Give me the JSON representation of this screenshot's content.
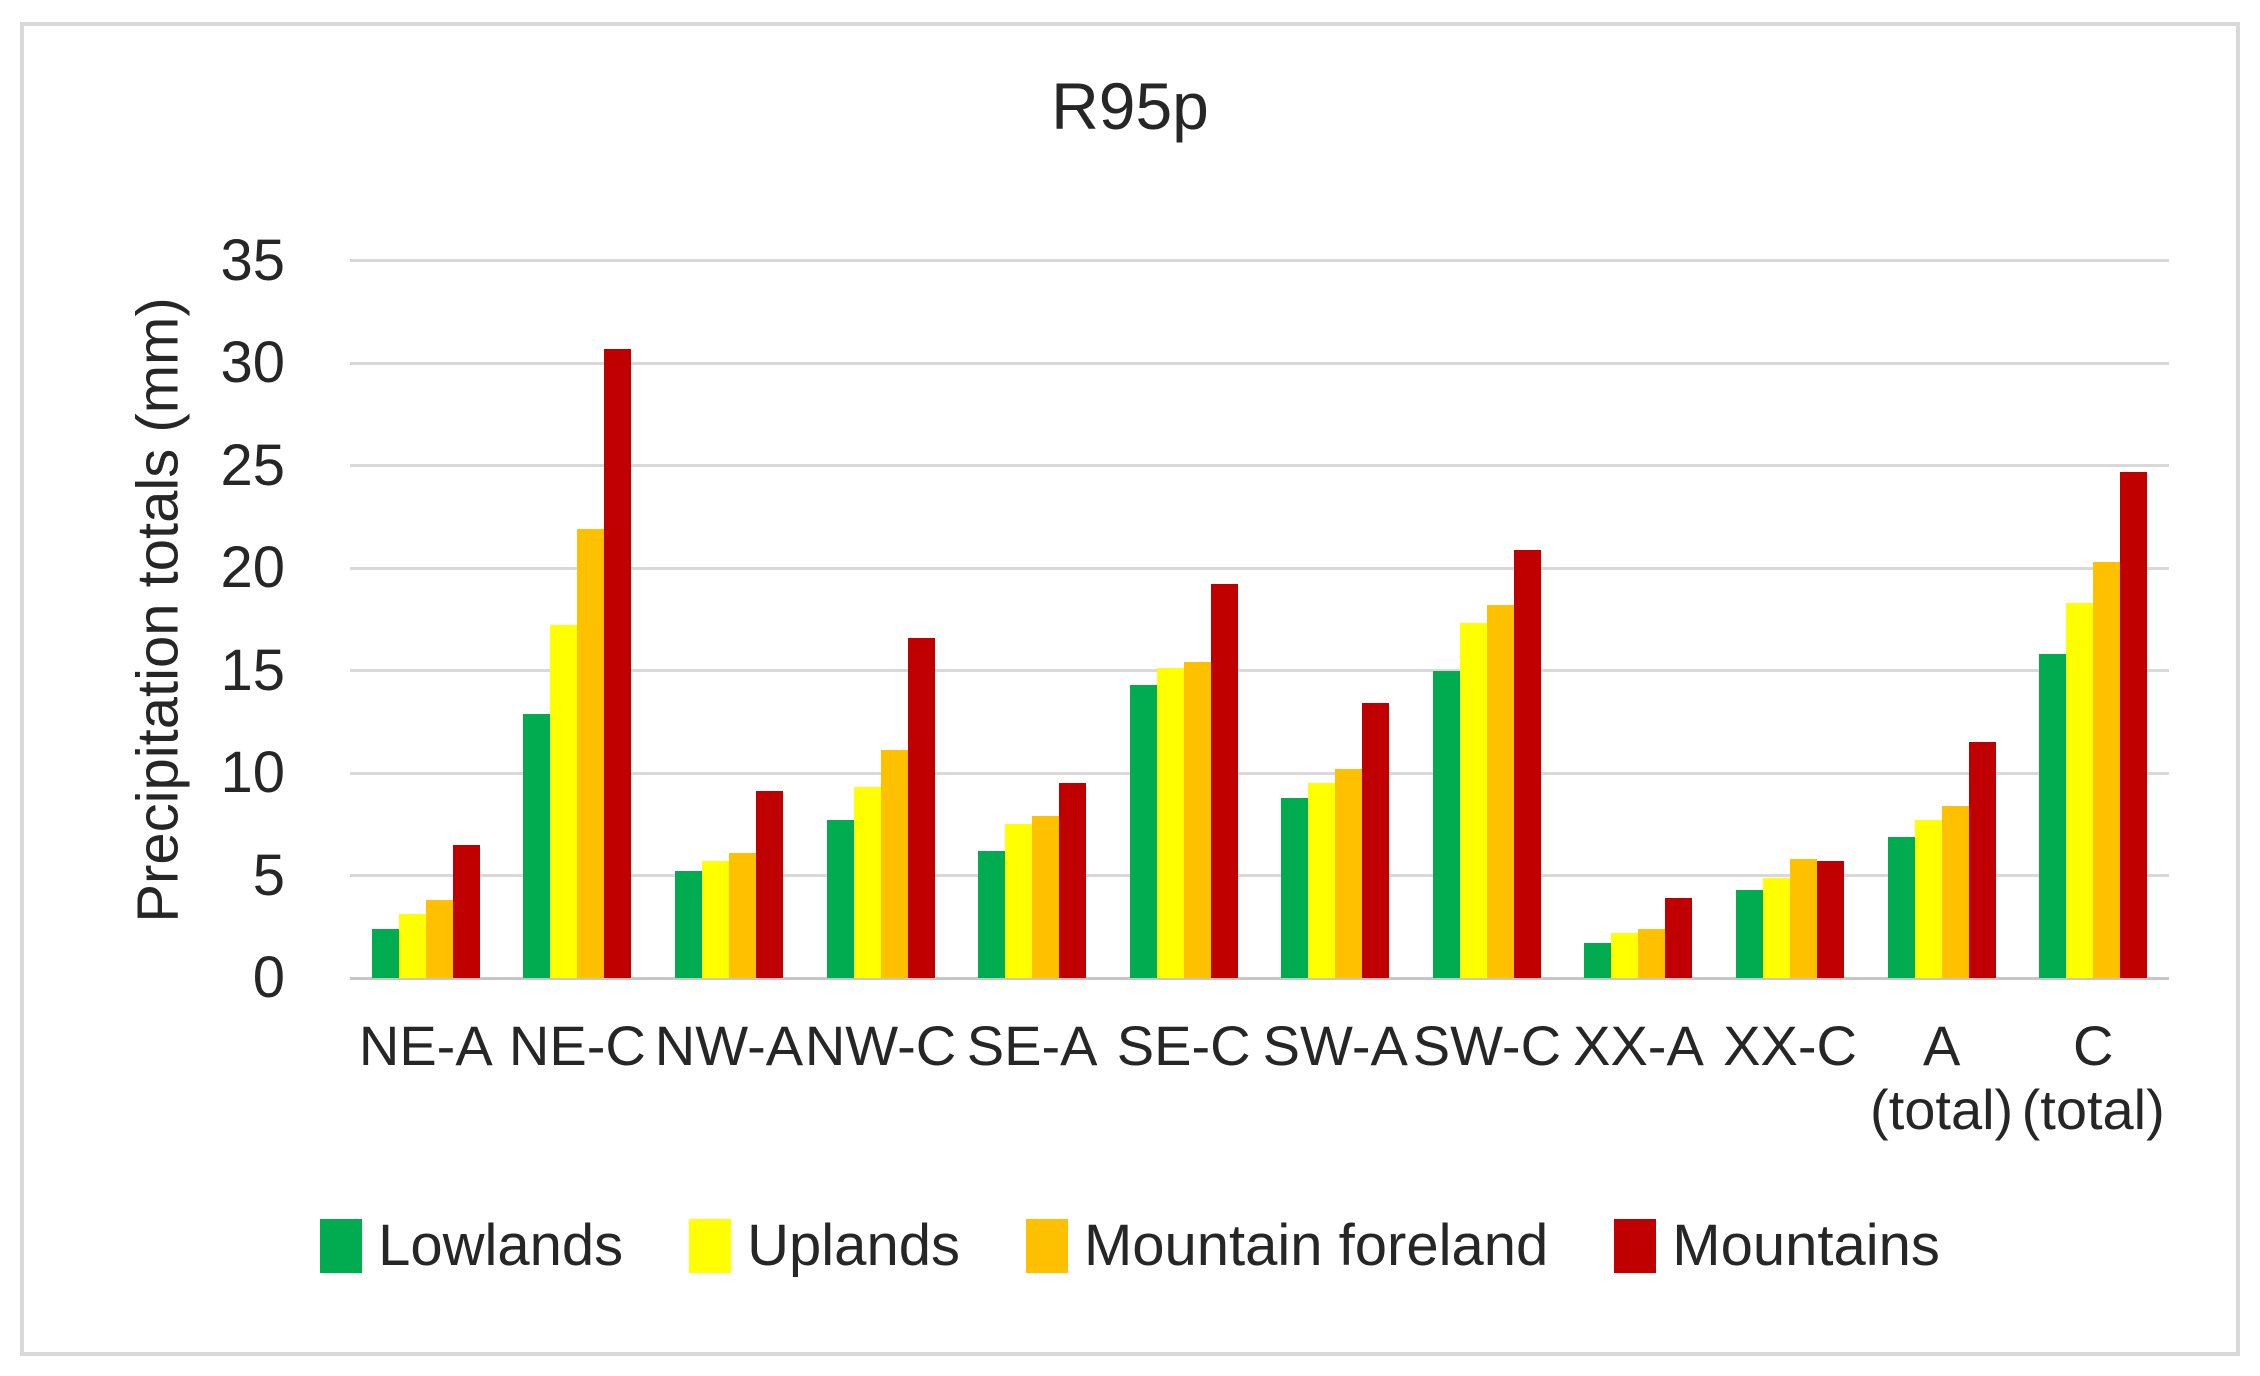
{
  "chart_data": {
    "type": "bar",
    "title": "R95p",
    "ylabel": "Precipitation totals (mm)",
    "ylim": [
      0,
      35
    ],
    "yticks": [
      0,
      5,
      10,
      15,
      20,
      25,
      30,
      35
    ],
    "grid": true,
    "legend_position": "bottom",
    "categories": [
      {
        "label": "NE-A"
      },
      {
        "label": "NE-C"
      },
      {
        "label": "NW-A"
      },
      {
        "label": "NW-C"
      },
      {
        "label": "SE-A"
      },
      {
        "label": "SE-C"
      },
      {
        "label": "SW-A"
      },
      {
        "label": "SW-C"
      },
      {
        "label": "XX-A"
      },
      {
        "label": "XX-C"
      },
      {
        "label": "A",
        "sublabel": "(total)"
      },
      {
        "label": "C",
        "sublabel": "(total)"
      }
    ],
    "series": [
      {
        "name": "Lowlands",
        "color": "#00AC4F",
        "values": [
          2.4,
          12.9,
          5.2,
          7.7,
          6.2,
          14.3,
          8.8,
          15.0,
          1.7,
          4.3,
          6.9,
          15.8
        ]
      },
      {
        "name": "Uplands",
        "color": "#FFFF00",
        "values": [
          3.1,
          17.2,
          5.7,
          9.3,
          7.5,
          15.1,
          9.5,
          17.3,
          2.2,
          4.9,
          7.7,
          18.3
        ]
      },
      {
        "name": "Mountain foreland",
        "color": "#FFC000",
        "values": [
          3.8,
          21.9,
          6.1,
          11.1,
          7.9,
          15.4,
          10.2,
          18.2,
          2.4,
          5.8,
          8.4,
          20.3
        ]
      },
      {
        "name": "Mountains",
        "color": "#C00000",
        "values": [
          6.5,
          30.7,
          9.1,
          16.6,
          9.5,
          19.2,
          13.4,
          20.9,
          3.9,
          5.7,
          11.5,
          24.7
        ]
      }
    ]
  },
  "colors": {
    "background": "#FFFFFF",
    "frame_border": "#D9D9D9",
    "gridline": "#D9D9D9",
    "axis_line": "#C6C6C6",
    "text": "#262626"
  }
}
